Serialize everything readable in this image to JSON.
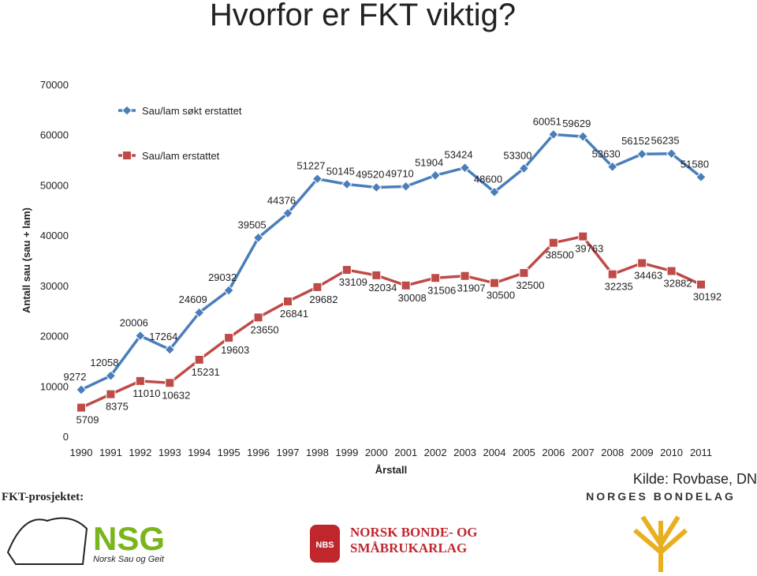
{
  "chart_data": {
    "type": "line",
    "title": "Hvorfor er FKT viktig?",
    "x_label": "Årstall",
    "y_label": "Antall sau (sau + lam)",
    "source": "Kilde: Rovbase, DN",
    "categories": [
      "1990",
      "1991",
      "1992",
      "1993",
      "1994",
      "1995",
      "1996",
      "1997",
      "1998",
      "1999",
      "2000",
      "2001",
      "2002",
      "2003",
      "2004",
      "2005",
      "2006",
      "2007",
      "2008",
      "2009",
      "2010",
      "2011"
    ],
    "series": [
      {
        "name": "Sau/lam søkt erstattet",
        "color": "#4a7ebb",
        "marker": "diamond",
        "values": [
          9272,
          12058,
          20006,
          17264,
          24609,
          29032,
          39505,
          44376,
          51227,
          50145,
          49520,
          49710,
          51904,
          53424,
          48600,
          53300,
          60051,
          59629,
          53630,
          56152,
          56235,
          51580
        ]
      },
      {
        "name": "Sau/lam erstattet",
        "color": "#be4b48",
        "marker": "square",
        "values": [
          5709,
          8375,
          11010,
          10632,
          15231,
          19603,
          23650,
          26841,
          29682,
          33109,
          32034,
          30008,
          31506,
          31907,
          30500,
          32500,
          38500,
          39763,
          32235,
          34463,
          32882,
          30192
        ]
      }
    ],
    "ylim": [
      0,
      70000
    ],
    "yticks": [
      0,
      10000,
      20000,
      30000,
      40000,
      50000,
      60000,
      70000
    ],
    "grid": false,
    "legend": "top-left"
  },
  "logos": {
    "project": "FKT-prosjektet:",
    "nsg": "NSG",
    "nsg_name": "Norsk Sau og Geit",
    "nbs": "NBS",
    "nbs_name_1": "NORSK BONDE- OG",
    "nbs_name_2": "SMÅBRUKARLAG",
    "bondelag": "NORGES BONDELAG"
  }
}
